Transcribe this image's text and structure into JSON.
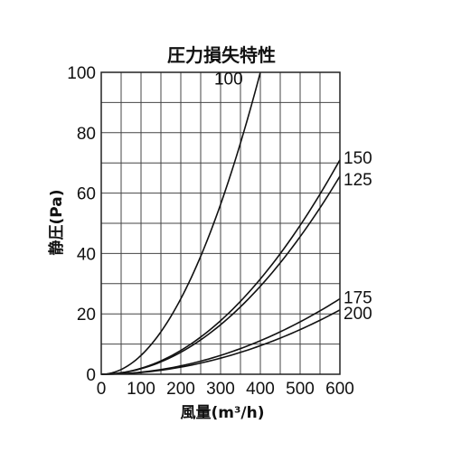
{
  "chart_data": {
    "type": "line",
    "title": "圧力損失特性",
    "xlabel": "風量(m³/h)",
    "ylabel": "静圧(Pa)",
    "xlim": [
      0,
      600
    ],
    "ylim": [
      0,
      100
    ],
    "x_ticks": [
      "0",
      "100",
      "200",
      "300",
      "400",
      "500",
      "600"
    ],
    "y_ticks": [
      "0",
      "20",
      "40",
      "60",
      "80",
      "100"
    ],
    "grid": true,
    "series": [
      {
        "name": "100",
        "x": [
          0,
          50,
          100,
          150,
          200,
          250,
          300,
          350,
          400
        ],
        "y": [
          0,
          1.6,
          6.3,
          14.1,
          25.0,
          39.1,
          56.3,
          76.6,
          100.0
        ]
      },
      {
        "name": "150",
        "x": [
          0,
          100,
          200,
          300,
          400,
          500,
          600
        ],
        "y": [
          0,
          2.0,
          7.9,
          17.8,
          31.6,
          49.4,
          71.0
        ]
      },
      {
        "name": "125",
        "x": [
          0,
          100,
          200,
          300,
          400,
          500,
          600
        ],
        "y": [
          0,
          1.8,
          7.3,
          16.4,
          29.1,
          45.6,
          65.6
        ]
      },
      {
        "name": "175",
        "x": [
          0,
          100,
          200,
          300,
          400,
          500,
          600
        ],
        "y": [
          0,
          0.7,
          2.8,
          6.3,
          11.1,
          17.4,
          25.0
        ]
      },
      {
        "name": "200",
        "x": [
          0,
          100,
          200,
          300,
          400,
          500,
          600
        ],
        "y": [
          0,
          0.6,
          2.4,
          5.3,
          9.5,
          14.8,
          21.3
        ]
      }
    ]
  }
}
